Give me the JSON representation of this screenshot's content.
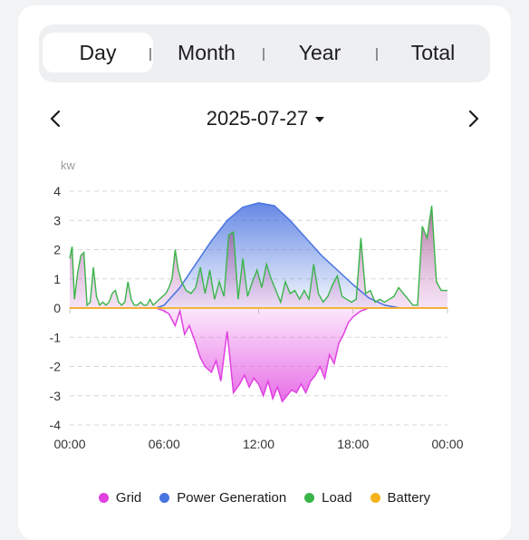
{
  "tabs": [
    {
      "label": "Day",
      "active": true
    },
    {
      "label": "Month",
      "active": false
    },
    {
      "label": "Year",
      "active": false
    },
    {
      "label": "Total",
      "active": false
    }
  ],
  "date_nav": {
    "date": "2025-07-27",
    "prev_icon": "chevron-left-icon",
    "next_icon": "chevron-right-icon",
    "dropdown_icon": "caret-down-icon"
  },
  "chart_data": {
    "type": "area",
    "ylabel": "kw",
    "ylim": [
      -4,
      4
    ],
    "yticks": [
      "4",
      "3",
      "2",
      "1",
      "0",
      "-1",
      "-2",
      "-3",
      "-4"
    ],
    "xlim": [
      0,
      24
    ],
    "xticks": [
      "00:00",
      "06:00",
      "12:00",
      "18:00",
      "00:00"
    ],
    "grid": true,
    "legend_position": "bottom",
    "series": [
      {
        "name": "Grid",
        "color": "#e040e0",
        "x": [
          0,
          0.8,
          1.5,
          2.5,
          3.5,
          4.5,
          5.5,
          6,
          6.3,
          6.7,
          7,
          7.3,
          7.6,
          8,
          8.3,
          8.6,
          9,
          9.3,
          9.6,
          10,
          10.4,
          10.8,
          11.1,
          11.4,
          11.7,
          12,
          12.3,
          12.6,
          12.9,
          13.2,
          13.5,
          13.8,
          14.1,
          14.4,
          14.7,
          15,
          15.3,
          15.6,
          15.9,
          16.2,
          16.5,
          16.8,
          17.1,
          17.4,
          17.7,
          18,
          18.5,
          19,
          24
        ],
        "y": [
          0,
          0,
          0,
          0,
          0,
          0,
          0,
          -0.1,
          -0.2,
          -0.6,
          -0.1,
          -0.9,
          -0.6,
          -1.2,
          -1.7,
          -2.0,
          -2.2,
          -1.8,
          -2.5,
          -0.8,
          -2.9,
          -2.6,
          -2.3,
          -2.7,
          -2.4,
          -2.6,
          -3.0,
          -2.5,
          -3.1,
          -2.7,
          -3.2,
          -3.0,
          -2.8,
          -2.9,
          -2.6,
          -2.9,
          -2.5,
          -2.3,
          -2.0,
          -2.4,
          -1.6,
          -1.9,
          -1.2,
          -0.9,
          -0.5,
          -0.3,
          -0.1,
          0,
          0
        ]
      },
      {
        "name": "Power Generation",
        "color": "#4a74e0",
        "x": [
          5.5,
          6,
          7,
          8,
          9,
          10,
          11,
          12,
          13,
          14,
          15,
          16,
          17,
          18,
          19,
          20,
          21
        ],
        "y": [
          0,
          0.1,
          0.7,
          1.5,
          2.3,
          3.0,
          3.45,
          3.6,
          3.5,
          3.0,
          2.4,
          1.8,
          1.3,
          0.8,
          0.35,
          0.1,
          0
        ]
      },
      {
        "name": "Load",
        "color": "#3ab54a",
        "x": [
          0,
          0.15,
          0.3,
          0.5,
          0.7,
          0.9,
          1.1,
          1.3,
          1.5,
          1.7,
          1.9,
          2.1,
          2.3,
          2.5,
          2.7,
          2.9,
          3.1,
          3.3,
          3.5,
          3.7,
          3.9,
          4.1,
          4.3,
          4.5,
          4.7,
          4.9,
          5.1,
          5.3,
          5.5,
          5.7,
          5.9,
          6.1,
          6.3,
          6.5,
          6.7,
          6.9,
          7.1,
          7.4,
          7.7,
          8,
          8.3,
          8.6,
          8.9,
          9.2,
          9.5,
          9.8,
          10.1,
          10.4,
          10.7,
          11,
          11.3,
          11.6,
          11.9,
          12.2,
          12.5,
          12.8,
          13.1,
          13.4,
          13.7,
          14,
          14.3,
          14.6,
          14.9,
          15.2,
          15.5,
          15.8,
          16.1,
          16.4,
          16.7,
          17,
          17.3,
          17.6,
          17.9,
          18.2,
          18.5,
          18.8,
          19.1,
          19.4,
          19.7,
          20,
          20.3,
          20.6,
          20.9,
          21.2,
          21.5,
          21.8,
          22.1,
          22.4,
          22.7,
          23,
          23.3,
          23.6,
          24
        ],
        "y": [
          1.7,
          2.1,
          0.3,
          1.2,
          1.8,
          1.9,
          0.1,
          0.2,
          1.4,
          0.4,
          0.1,
          0.2,
          0.1,
          0.2,
          0.5,
          0.6,
          0.2,
          0.1,
          0.2,
          0.9,
          0.3,
          0.1,
          0.1,
          0.2,
          0.1,
          0.1,
          0.3,
          0.1,
          0.2,
          0.3,
          0.4,
          0.5,
          0.7,
          1.0,
          2.0,
          1.3,
          0.9,
          0.6,
          0.5,
          0.7,
          1.4,
          0.5,
          1.3,
          0.3,
          0.9,
          0.4,
          2.5,
          2.6,
          0.3,
          1.7,
          0.4,
          0.9,
          1.3,
          0.7,
          1.5,
          1.0,
          0.6,
          0.2,
          0.9,
          0.5,
          0.6,
          0.3,
          0.6,
          0.3,
          1.5,
          0.5,
          0.2,
          0.4,
          0.8,
          1.1,
          0.4,
          0.3,
          0.2,
          0.3,
          2.4,
          0.5,
          0.6,
          0.2,
          0.3,
          0.2,
          0.3,
          0.4,
          0.7,
          0.5,
          0.3,
          0.1,
          0.1,
          2.8,
          2.4,
          3.5,
          0.9,
          0.6,
          0.6
        ]
      },
      {
        "name": "Battery",
        "color": "#f4b21b",
        "x": [
          0,
          24
        ],
        "y": [
          0,
          0
        ]
      }
    ]
  },
  "legend": [
    {
      "label": "Grid",
      "color": "#e040e0"
    },
    {
      "label": "Power Generation",
      "color": "#4a74e0"
    },
    {
      "label": "Load",
      "color": "#3ab54a"
    },
    {
      "label": "Battery",
      "color": "#f4b21b"
    }
  ]
}
